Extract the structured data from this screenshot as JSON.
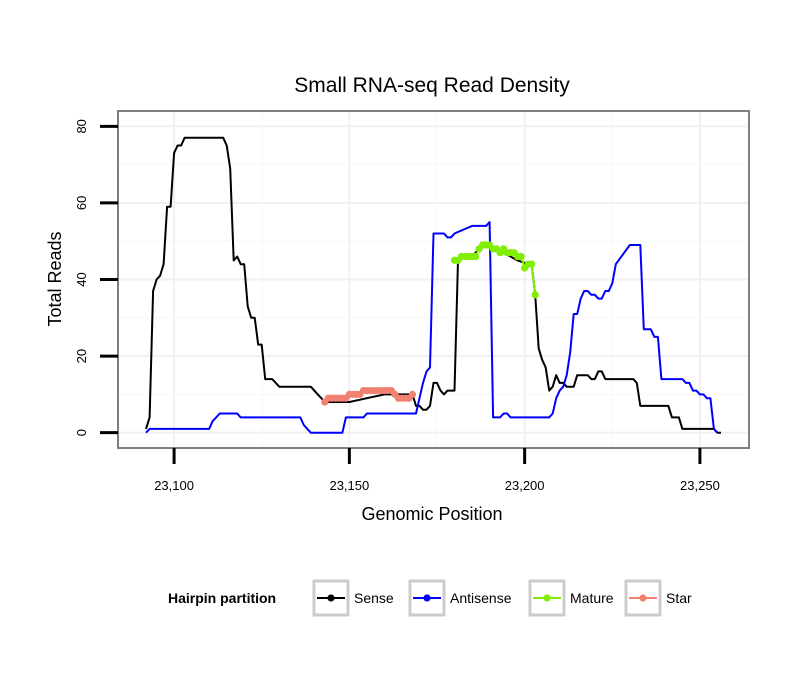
{
  "chart_data": {
    "type": "line",
    "title": "Small RNA-seq Read Density",
    "xlabel": "Genomic Position",
    "ylabel": "Total Reads",
    "xlim": [
      23084,
      23264
    ],
    "ylim": [
      -4,
      84
    ],
    "x_ticks": [
      23100,
      23150,
      23200,
      23250
    ],
    "x_tick_labels": [
      "23,100",
      "23,150",
      "23,200",
      "23,250"
    ],
    "y_ticks": [
      0,
      20,
      40,
      60,
      80
    ],
    "y_tick_labels": [
      "0",
      "20",
      "40",
      "60",
      "80"
    ],
    "grid": true,
    "legend": {
      "title": "Hairpin partition",
      "placement": "bottom",
      "entries": [
        "Sense",
        "Antisense",
        "Mature",
        "Star"
      ]
    },
    "series": [
      {
        "name": "Sense",
        "color": "#000000",
        "style": "line",
        "x": [
          23092,
          23093,
          23094,
          23095,
          23096,
          23097,
          23098,
          23099,
          23100,
          23101,
          23102,
          23103,
          23104,
          23105,
          23107,
          23108,
          23110,
          23112,
          23114,
          23115,
          23116,
          23117,
          23118,
          23119,
          23120,
          23121,
          23122,
          23123,
          23124,
          23125,
          23126,
          23127,
          23128,
          23129,
          23130,
          23132,
          23134,
          23136,
          23138,
          23139,
          23140,
          23141,
          23142,
          23143,
          23145,
          23150,
          23155,
          23160,
          23165,
          23167,
          23168,
          23169,
          23170,
          23171,
          23172,
          23173,
          23174,
          23175,
          23176,
          23177,
          23178,
          23179,
          23180,
          23181,
          23183,
          23185,
          23187,
          23189,
          23191,
          23194,
          23198,
          23201,
          23202,
          23203,
          23204,
          23205,
          23206,
          23207,
          23208,
          23209,
          23210,
          23211,
          23212,
          23213,
          23214,
          23215,
          23216,
          23217,
          23218,
          23219,
          23220,
          23221,
          23222,
          23223,
          23224,
          23225,
          23226,
          23227,
          23228,
          23229,
          23230,
          23231,
          23232,
          23233,
          23234,
          23235,
          23236,
          23237,
          23238,
          23239,
          23240,
          23241,
          23242,
          23243,
          23244,
          23245,
          23246,
          23247,
          23248,
          23249,
          23250,
          23251,
          23252,
          23253,
          23254,
          23255,
          23256
        ],
        "y": [
          1,
          4,
          37,
          40,
          41,
          44,
          59,
          59,
          73,
          75,
          75,
          77,
          77,
          77,
          77,
          77,
          77,
          77,
          77,
          75,
          69,
          45,
          46,
          44,
          44,
          33,
          30,
          30,
          23,
          23,
          14,
          14,
          14,
          13,
          12,
          12,
          12,
          12,
          12,
          12,
          11,
          10,
          9,
          8,
          8,
          8,
          9,
          10,
          10,
          10,
          10,
          7,
          7,
          6,
          6,
          7,
          13,
          13,
          11,
          10,
          11,
          11,
          11,
          45,
          46,
          46,
          48,
          49,
          48,
          47,
          45,
          44,
          44,
          36,
          22,
          19,
          17,
          11,
          12,
          15,
          13,
          13,
          12,
          12,
          12,
          15,
          15,
          15,
          15,
          14,
          14,
          16,
          16,
          14,
          14,
          14,
          14,
          14,
          14,
          14,
          14,
          14,
          13,
          7,
          7,
          7,
          7,
          7,
          7,
          7,
          7,
          7,
          4,
          4,
          4,
          1,
          1,
          1,
          1,
          1,
          1,
          1,
          1,
          1,
          1,
          0,
          0
        ]
      },
      {
        "name": "Antisense",
        "color": "#0000ff",
        "style": "line",
        "x": [
          23092,
          23093,
          23095,
          23100,
          23105,
          23110,
          23111,
          23112,
          23113,
          23114,
          23115,
          23116,
          23117,
          23118,
          23119,
          23120,
          23121,
          23122,
          23125,
          23130,
          23135,
          23136,
          23137,
          23138,
          23139,
          23140,
          23141,
          23142,
          23143,
          23144,
          23145,
          23146,
          23147,
          23148,
          23149,
          23150,
          23151,
          23152,
          23153,
          23154,
          23155,
          23160,
          23165,
          23166,
          23167,
          23168,
          23169,
          23170,
          23171,
          23172,
          23173,
          23174,
          23175,
          23176,
          23177,
          23178,
          23179,
          23180,
          23185,
          23189,
          23190,
          23191,
          23192,
          23193,
          23194,
          23195,
          23196,
          23200,
          23205,
          23206,
          23207,
          23208,
          23209,
          23210,
          23211,
          23212,
          23213,
          23214,
          23215,
          23216,
          23217,
          23218,
          23219,
          23220,
          23221,
          23222,
          23223,
          23224,
          23225,
          23226,
          23230,
          23231,
          23232,
          23233,
          23234,
          23235,
          23236,
          23237,
          23238,
          23239,
          23240,
          23241,
          23242,
          23243,
          23244,
          23245,
          23246,
          23247,
          23248,
          23249,
          23250,
          23251,
          23252,
          23253,
          23254,
          23255
        ],
        "y": [
          0,
          1,
          1,
          1,
          1,
          1,
          3,
          4,
          5,
          5,
          5,
          5,
          5,
          5,
          4,
          4,
          4,
          4,
          4,
          4,
          4,
          4,
          2,
          1,
          0,
          0,
          0,
          0,
          0,
          0,
          0,
          0,
          0,
          0,
          4,
          4,
          4,
          4,
          4,
          4,
          5,
          5,
          5,
          5,
          5,
          5,
          5,
          9,
          13,
          16,
          17,
          52,
          52,
          52,
          52,
          51,
          51,
          52,
          54,
          54,
          55,
          4,
          4,
          4,
          5,
          5,
          4,
          4,
          4,
          4,
          4,
          5,
          9,
          11,
          12,
          15,
          21,
          31,
          31,
          35,
          37,
          37,
          36,
          36,
          35,
          35,
          37,
          37,
          39,
          44,
          49,
          49,
          49,
          49,
          27,
          27,
          27,
          25,
          25,
          14,
          14,
          14,
          14,
          14,
          14,
          14,
          13,
          13,
          11,
          11,
          10,
          10,
          9,
          9,
          1,
          0
        ]
      },
      {
        "name": "Mature",
        "color": "#80ee00",
        "style": "line+points",
        "x": [
          23180,
          23181,
          23182,
          23183,
          23184,
          23185,
          23186,
          23187,
          23188,
          23189,
          23190,
          23191,
          23192,
          23193,
          23194,
          23195,
          23196,
          23197,
          23198,
          23199,
          23200,
          23201,
          23202,
          23203
        ],
        "y": [
          45,
          45,
          46,
          46,
          46,
          46,
          46,
          48,
          49,
          49,
          49,
          48,
          48,
          47,
          48,
          47,
          47,
          47,
          46,
          46,
          43,
          44,
          44,
          36
        ]
      },
      {
        "name": "Star",
        "color": "#f08070",
        "style": "line+points",
        "x": [
          23143,
          23144,
          23145,
          23146,
          23147,
          23148,
          23149,
          23150,
          23151,
          23152,
          23153,
          23154,
          23155,
          23156,
          23157,
          23158,
          23159,
          23160,
          23161,
          23162,
          23163,
          23164,
          23165,
          23166,
          23167,
          23168
        ],
        "y": [
          8,
          9,
          9,
          9,
          9,
          9,
          9,
          10,
          10,
          10,
          10,
          11,
          11,
          11,
          11,
          11,
          11,
          11,
          11,
          11,
          10,
          9,
          9,
          9,
          9,
          10
        ]
      }
    ]
  }
}
